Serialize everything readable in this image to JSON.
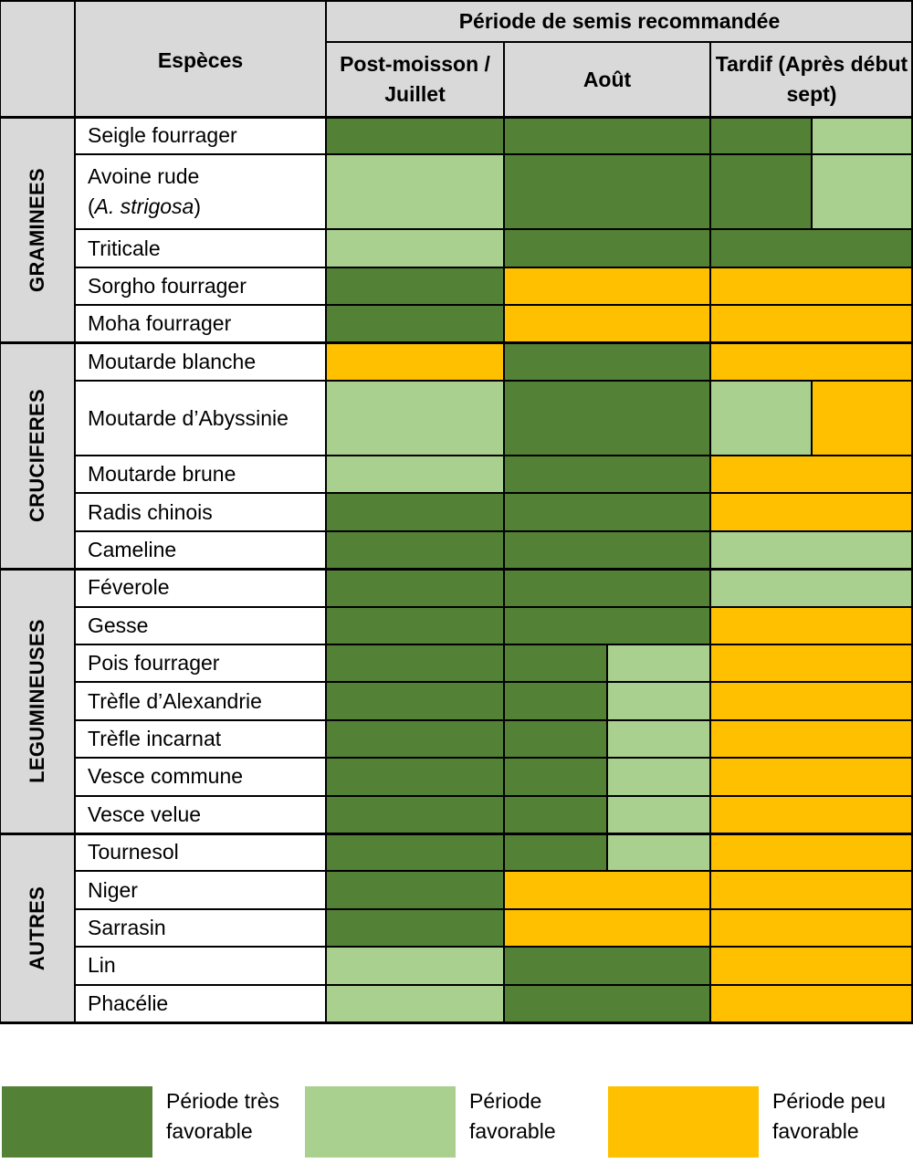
{
  "colors": {
    "tres_favorable": "#538135",
    "favorable": "#a9d08e",
    "peu_favorable": "#ffc000",
    "header_bg": "#d9d9d9"
  },
  "header": {
    "species_label": "Espèces",
    "period_title": "Période de semis recommandée",
    "periods": [
      "Post-moisson / Juillet",
      "Août",
      "Tardif (Après début sept)"
    ]
  },
  "chart_data": {
    "type": "table",
    "columns": [
      "Post-moisson / Juillet",
      "Août",
      "Tardif (Après début sept)"
    ],
    "groups": [
      {
        "name": "GRAMINEES",
        "species": [
          {
            "label": "Seigle fourrager",
            "periods": [
              [
                "tres_favorable"
              ],
              [
                "tres_favorable"
              ],
              [
                "tres_favorable",
                "favorable"
              ]
            ]
          },
          {
            "label_html": "Avoine rude<br>(<i>A. strigosa</i>)",
            "label": "Avoine rude (A. strigosa)",
            "periods": [
              [
                "favorable"
              ],
              [
                "tres_favorable"
              ],
              [
                "tres_favorable",
                "favorable"
              ]
            ]
          },
          {
            "label": "Triticale",
            "periods": [
              [
                "favorable"
              ],
              [
                "tres_favorable"
              ],
              [
                "tres_favorable"
              ]
            ]
          },
          {
            "label": "Sorgho fourrager",
            "periods": [
              [
                "tres_favorable"
              ],
              [
                "peu_favorable"
              ],
              [
                "peu_favorable"
              ]
            ]
          },
          {
            "label": "Moha fourrager",
            "periods": [
              [
                "tres_favorable"
              ],
              [
                "peu_favorable"
              ],
              [
                "peu_favorable"
              ]
            ]
          }
        ]
      },
      {
        "name": "CRUCIFERES",
        "species": [
          {
            "label": "Moutarde blanche",
            "periods": [
              [
                "peu_favorable"
              ],
              [
                "tres_favorable"
              ],
              [
                "peu_favorable"
              ]
            ]
          },
          {
            "label": "Moutarde d’Abyssinie",
            "periods": [
              [
                "favorable"
              ],
              [
                "tres_favorable"
              ],
              [
                "favorable",
                "peu_favorable"
              ]
            ]
          },
          {
            "label": "Moutarde brune",
            "periods": [
              [
                "favorable"
              ],
              [
                "tres_favorable"
              ],
              [
                "peu_favorable"
              ]
            ]
          },
          {
            "label": "Radis chinois",
            "periods": [
              [
                "tres_favorable"
              ],
              [
                "tres_favorable"
              ],
              [
                "peu_favorable"
              ]
            ]
          },
          {
            "label": "Cameline",
            "periods": [
              [
                "tres_favorable"
              ],
              [
                "tres_favorable"
              ],
              [
                "favorable"
              ]
            ]
          }
        ]
      },
      {
        "name": "LEGUMINEUSES",
        "species": [
          {
            "label": "Féverole",
            "periods": [
              [
                "tres_favorable"
              ],
              [
                "tres_favorable"
              ],
              [
                "favorable"
              ]
            ]
          },
          {
            "label": "Gesse",
            "periods": [
              [
                "tres_favorable"
              ],
              [
                "tres_favorable"
              ],
              [
                "peu_favorable"
              ]
            ]
          },
          {
            "label": "Pois fourrager",
            "periods": [
              [
                "tres_favorable"
              ],
              [
                "tres_favorable",
                "favorable"
              ],
              [
                "peu_favorable"
              ]
            ]
          },
          {
            "label": "Trèfle d’Alexandrie",
            "periods": [
              [
                "tres_favorable"
              ],
              [
                "tres_favorable",
                "favorable"
              ],
              [
                "peu_favorable"
              ]
            ]
          },
          {
            "label": "Trèfle incarnat",
            "periods": [
              [
                "tres_favorable"
              ],
              [
                "tres_favorable",
                "favorable"
              ],
              [
                "peu_favorable"
              ]
            ]
          },
          {
            "label": "Vesce commune",
            "periods": [
              [
                "tres_favorable"
              ],
              [
                "tres_favorable",
                "favorable"
              ],
              [
                "peu_favorable"
              ]
            ]
          },
          {
            "label": "Vesce velue",
            "periods": [
              [
                "tres_favorable"
              ],
              [
                "tres_favorable",
                "favorable"
              ],
              [
                "peu_favorable"
              ]
            ]
          }
        ]
      },
      {
        "name": "AUTRES",
        "species": [
          {
            "label": "Tournesol",
            "periods": [
              [
                "tres_favorable"
              ],
              [
                "tres_favorable",
                "favorable"
              ],
              [
                "peu_favorable"
              ]
            ]
          },
          {
            "label": "Niger",
            "periods": [
              [
                "tres_favorable"
              ],
              [
                "peu_favorable"
              ],
              [
                "peu_favorable"
              ]
            ]
          },
          {
            "label": "Sarrasin",
            "periods": [
              [
                "tres_favorable"
              ],
              [
                "peu_favorable"
              ],
              [
                "peu_favorable"
              ]
            ]
          },
          {
            "label": "Lin",
            "periods": [
              [
                "favorable"
              ],
              [
                "tres_favorable"
              ],
              [
                "peu_favorable"
              ]
            ]
          },
          {
            "label": "Phacélie",
            "periods": [
              [
                "favorable"
              ],
              [
                "tres_favorable"
              ],
              [
                "peu_favorable"
              ]
            ]
          }
        ]
      }
    ]
  },
  "legend": [
    {
      "key": "tres_favorable",
      "label": "Période très favorable"
    },
    {
      "key": "favorable",
      "label": "Période favorable"
    },
    {
      "key": "peu_favorable",
      "label": "Période peu favorable"
    }
  ]
}
